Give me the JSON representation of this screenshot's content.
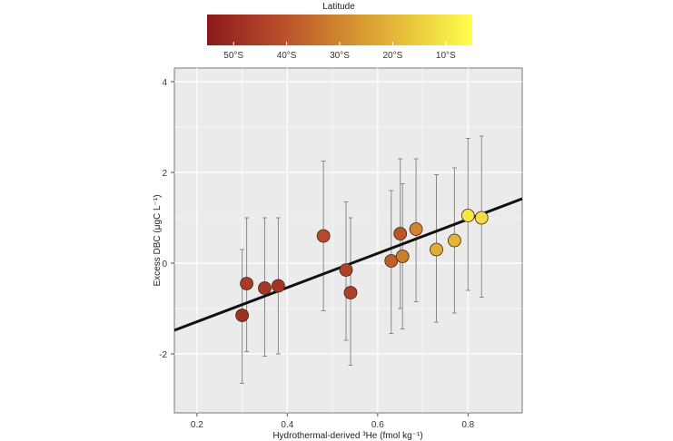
{
  "chart_data": {
    "type": "scatter",
    "xlabel": "Hydrothermal-derived ³He (fmol kg⁻¹)",
    "ylabel": "Excess DBC (μgC L⁻¹)",
    "xlim": [
      0.15,
      0.92
    ],
    "ylim": [
      -3.3,
      4.3
    ],
    "x_ticks": [
      0.2,
      0.4,
      0.6,
      0.8
    ],
    "x_tick_labels": [
      "0.2",
      "0.4",
      "0.6",
      "0.8"
    ],
    "y_ticks": [
      -2,
      0,
      2,
      4
    ],
    "y_tick_labels": [
      "-2",
      "0",
      "2",
      "4"
    ],
    "grid": true,
    "colorbar": {
      "title": "Latitude",
      "range": [
        55,
        5
      ],
      "tick_values": [
        50,
        40,
        30,
        20,
        10
      ],
      "tick_labels": [
        "50°S",
        "40°S",
        "30°S",
        "20°S",
        "10°S"
      ],
      "colors": [
        "#8b1a1a",
        "#b5472a",
        "#d0862e",
        "#e8c23a",
        "#ffff4d"
      ],
      "placement": "top"
    },
    "points": [
      {
        "x": 0.3,
        "y": -1.15,
        "ylow": -2.65,
        "yhigh": 0.3,
        "lat": 49
      },
      {
        "x": 0.31,
        "y": -0.45,
        "ylow": -1.95,
        "yhigh": 1.0,
        "lat": 46
      },
      {
        "x": 0.35,
        "y": -0.55,
        "ylow": -2.05,
        "yhigh": 1.0,
        "lat": 47
      },
      {
        "x": 0.38,
        "y": -0.5,
        "ylow": -2.0,
        "yhigh": 1.0,
        "lat": 48
      },
      {
        "x": 0.48,
        "y": 0.6,
        "ylow": -1.05,
        "yhigh": 2.25,
        "lat": 42
      },
      {
        "x": 0.53,
        "y": -0.15,
        "ylow": -1.7,
        "yhigh": 1.35,
        "lat": 44
      },
      {
        "x": 0.54,
        "y": -0.65,
        "ylow": -2.25,
        "yhigh": 1.0,
        "lat": 45
      },
      {
        "x": 0.63,
        "y": 0.05,
        "ylow": -1.55,
        "yhigh": 1.6,
        "lat": 38
      },
      {
        "x": 0.65,
        "y": 0.65,
        "ylow": -1.0,
        "yhigh": 2.3,
        "lat": 40
      },
      {
        "x": 0.655,
        "y": 0.15,
        "ylow": -1.45,
        "yhigh": 1.75,
        "lat": 32
      },
      {
        "x": 0.685,
        "y": 0.75,
        "ylow": -0.85,
        "yhigh": 2.3,
        "lat": 30
      },
      {
        "x": 0.73,
        "y": 0.3,
        "ylow": -1.3,
        "yhigh": 1.95,
        "lat": 22
      },
      {
        "x": 0.77,
        "y": 0.5,
        "ylow": -1.1,
        "yhigh": 2.1,
        "lat": 20
      },
      {
        "x": 0.8,
        "y": 1.05,
        "ylow": -0.6,
        "yhigh": 2.75,
        "lat": 10
      },
      {
        "x": 0.83,
        "y": 1.0,
        "ylow": -0.75,
        "yhigh": 2.8,
        "lat": 12
      }
    ],
    "fit_line": {
      "x": [
        0.15,
        0.92
      ],
      "y": [
        -1.48,
        1.42
      ]
    }
  }
}
